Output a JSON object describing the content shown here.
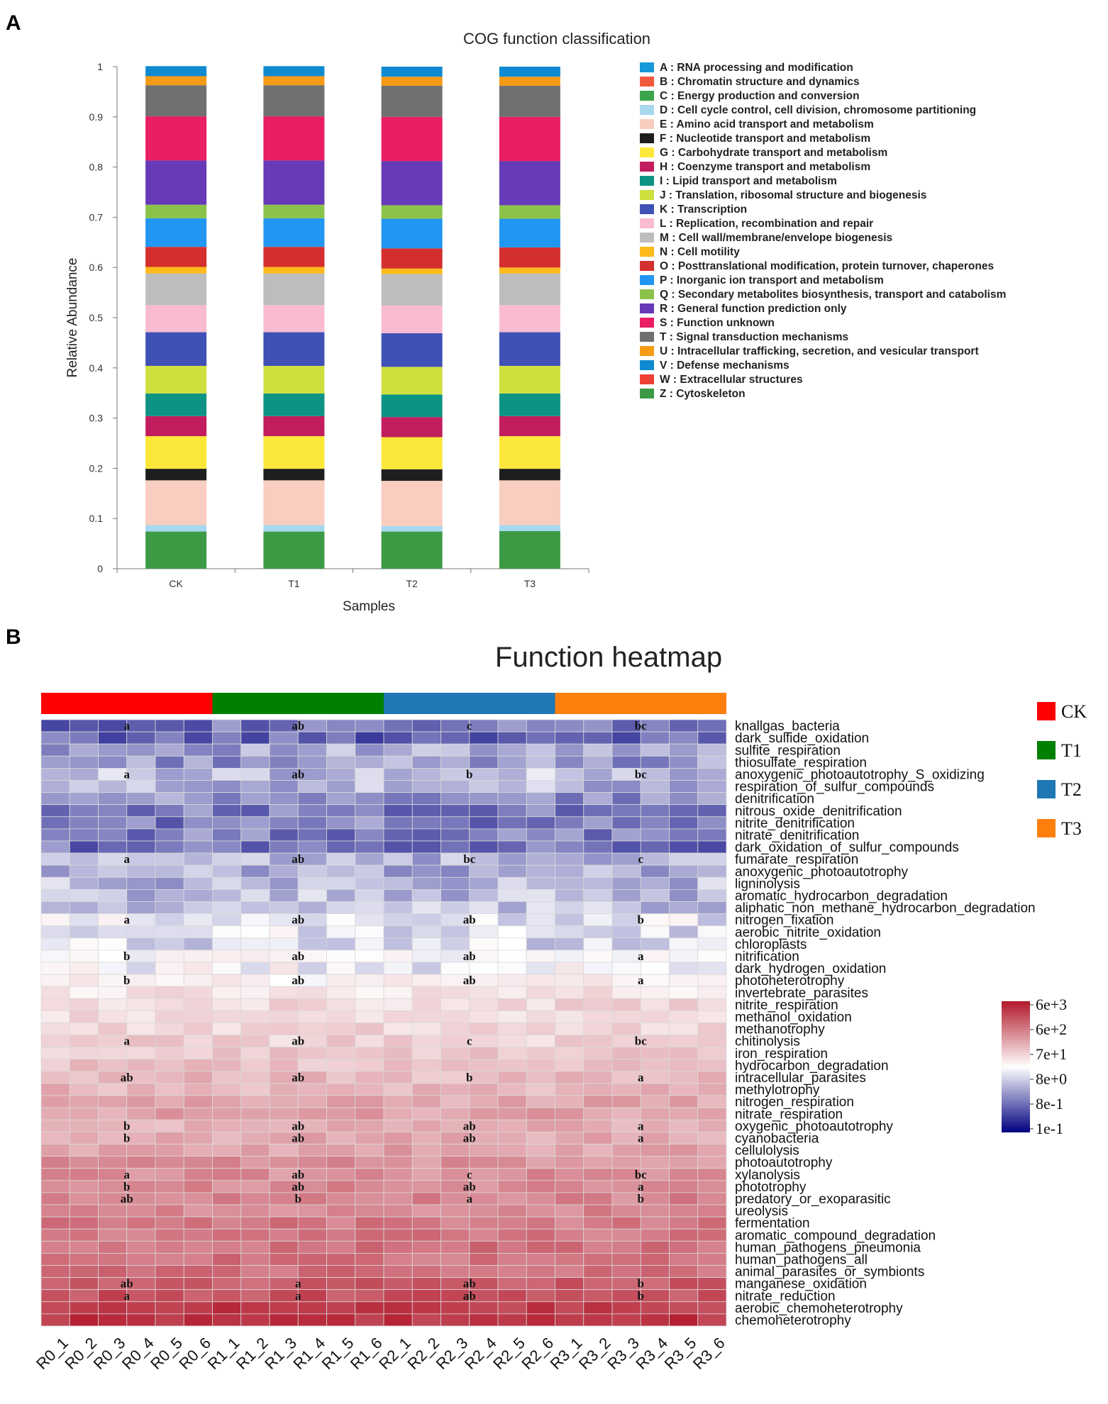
{
  "panel_a": {
    "letter": "A"
  },
  "panel_b": {
    "letter": "B"
  },
  "chart_data": [
    {
      "type": "bar",
      "stacked": true,
      "title": "COG function classification",
      "xlabel": "Samples",
      "ylabel": "Relative Abundance",
      "ylim": [
        0,
        1
      ],
      "yticks": [
        "0",
        "0.1",
        "0.2",
        "0.3",
        "0.4",
        "0.5",
        "0.6",
        "0.7",
        "0.8",
        "0.9",
        "1"
      ],
      "categories": [
        "CK",
        "T1",
        "T2",
        "T3"
      ],
      "series": [
        {
          "name": "Z : Cytoskeleton",
          "color": "#3c9a45",
          "values": [
            0.074,
            0.074,
            0.074,
            0.075
          ]
        },
        {
          "name": "D : Cell cycle control, cell division, chromosome partitioning",
          "color": "#a6d8f0",
          "values": [
            0.013,
            0.013,
            0.011,
            0.012
          ]
        },
        {
          "name": "E : Amino acid transport and metabolism",
          "color": "#f9cdbf",
          "values": [
            0.089,
            0.089,
            0.09,
            0.089
          ]
        },
        {
          "name": "F : Nucleotide transport and metabolism",
          "color": "#1e1e1e",
          "values": [
            0.023,
            0.023,
            0.023,
            0.023
          ]
        },
        {
          "name": "G : Carbohydrate transport and metabolism",
          "color": "#fce83a",
          "values": [
            0.065,
            0.065,
            0.064,
            0.065
          ]
        },
        {
          "name": "H : Coenzyme transport and metabolism",
          "color": "#c21d5e",
          "values": [
            0.04,
            0.04,
            0.04,
            0.04
          ]
        },
        {
          "name": "I : Lipid transport and metabolism",
          "color": "#0d9384",
          "values": [
            0.045,
            0.045,
            0.045,
            0.045
          ]
        },
        {
          "name": "J : Translation, ribosomal structure and biogenesis",
          "color": "#cde03e",
          "values": [
            0.055,
            0.055,
            0.055,
            0.055
          ]
        },
        {
          "name": "K : Transcription",
          "color": "#3f51b5",
          "values": [
            0.067,
            0.067,
            0.067,
            0.067
          ]
        },
        {
          "name": "L : Replication, recombination and repair",
          "color": "#f8bbd0",
          "values": [
            0.054,
            0.054,
            0.055,
            0.054
          ]
        },
        {
          "name": "M : Cell wall/membrane/envelope biogenesis",
          "color": "#bdbdbd",
          "values": [
            0.063,
            0.063,
            0.063,
            0.063
          ]
        },
        {
          "name": "N : Cell motility",
          "color": "#fcba1c",
          "values": [
            0.013,
            0.013,
            0.011,
            0.012
          ]
        },
        {
          "name": "O : Posttranslational modification, protein turnover, chaperones",
          "color": "#d32f2f",
          "values": [
            0.04,
            0.04,
            0.04,
            0.04
          ]
        },
        {
          "name": "P : Inorganic ion transport and metabolism",
          "color": "#2196f3",
          "values": [
            0.057,
            0.057,
            0.059,
            0.057
          ]
        },
        {
          "name": "Q : Secondary metabolites biosynthesis, transport and catabolism",
          "color": "#8bc34a",
          "values": [
            0.027,
            0.027,
            0.027,
            0.027
          ]
        },
        {
          "name": "R : General function prediction only",
          "color": "#673ab7",
          "values": [
            0.088,
            0.088,
            0.088,
            0.088
          ]
        },
        {
          "name": "S : Function unknown",
          "color": "#e91e63",
          "values": [
            0.088,
            0.088,
            0.088,
            0.088
          ]
        },
        {
          "name": "T : Signal transduction mechanisms",
          "color": "#707070",
          "values": [
            0.062,
            0.062,
            0.062,
            0.062
          ]
        },
        {
          "name": "U : Intracellular trafficking, secretion, and vesicular transport",
          "color": "#f59b15",
          "values": [
            0.018,
            0.018,
            0.018,
            0.018
          ]
        },
        {
          "name": "V : Defense mechanisms",
          "color": "#0f8ad0",
          "values": [
            0.02,
            0.02,
            0.02,
            0.02
          ]
        }
      ],
      "legend_position": "right",
      "legend": [
        {
          "label": "A : RNA processing and modification",
          "color": "#1599d8"
        },
        {
          "label": "B : Chromatin structure and dynamics",
          "color": "#f15a3c"
        },
        {
          "label": "C : Energy production and conversion",
          "color": "#3ba44a"
        },
        {
          "label": "D : Cell cycle control, cell division, chromosome partitioning",
          "color": "#a6d8f0"
        },
        {
          "label": "E : Amino acid transport and metabolism",
          "color": "#f9cdbf"
        },
        {
          "label": "F : Nucleotide transport and metabolism",
          "color": "#1e1e1e"
        },
        {
          "label": "G : Carbohydrate transport and metabolism",
          "color": "#fce83a"
        },
        {
          "label": "H : Coenzyme transport and metabolism",
          "color": "#c21d5e"
        },
        {
          "label": "I : Lipid transport and metabolism",
          "color": "#0d9384"
        },
        {
          "label": "J : Translation, ribosomal structure and biogenesis",
          "color": "#cde03e"
        },
        {
          "label": "K : Transcription",
          "color": "#3f51b5"
        },
        {
          "label": "L : Replication, recombination and repair",
          "color": "#f8bbd0"
        },
        {
          "label": "M : Cell wall/membrane/envelope biogenesis",
          "color": "#bdbdbd"
        },
        {
          "label": "N : Cell motility",
          "color": "#fcba1c"
        },
        {
          "label": "O : Posttranslational modification, protein turnover, chaperones",
          "color": "#d32f2f"
        },
        {
          "label": "P : Inorganic ion transport and metabolism",
          "color": "#2196f3"
        },
        {
          "label": "Q : Secondary metabolites biosynthesis, transport and catabolism",
          "color": "#8bc34a"
        },
        {
          "label": "R : General function prediction only",
          "color": "#673ab7"
        },
        {
          "label": "S : Function unknown",
          "color": "#e91e63"
        },
        {
          "label": "T : Signal transduction mechanisms",
          "color": "#707070"
        },
        {
          "label": "U : Intracellular trafficking, secretion, and vesicular transport",
          "color": "#f59b15"
        },
        {
          "label": "V : Defense mechanisms",
          "color": "#0f8ad0"
        },
        {
          "label": "W : Extracellular structures",
          "color": "#ef4036"
        },
        {
          "label": "Z : Cytoskeleton",
          "color": "#3c9a45"
        }
      ]
    },
    {
      "type": "heatmap",
      "title": "Function heatmap",
      "columns": [
        "R0_1",
        "R0_2",
        "R0_3",
        "R0_4",
        "R0_5",
        "R0_6",
        "R1_1",
        "R1_2",
        "R1_3",
        "R1_4",
        "R1_5",
        "R1_6",
        "R2_1",
        "R2_2",
        "R2_3",
        "R2_4",
        "R2_5",
        "R2_6",
        "R3_1",
        "R3_2",
        "R3_3",
        "R3_4",
        "R3_5",
        "R3_6"
      ],
      "groups": [
        {
          "name": "CK",
          "color": "#ff0000",
          "span": 6
        },
        {
          "name": "T1",
          "color": "#008000",
          "span": 6
        },
        {
          "name": "T2",
          "color": "#1f77b4",
          "span": 6
        },
        {
          "name": "T3",
          "color": "#ff7f0e",
          "span": 6
        }
      ],
      "rows": [
        "knallgas_bacteria",
        "dark_sulfide_oxidation",
        "sulfite_respiration",
        "thiosulfate_respiration",
        "anoxygenic_photoautotrophy_S_oxidizing",
        "respiration_of_sulfur_compounds",
        "denitrification",
        "nitrous_oxide_denitrification",
        "nitrite_denitrification",
        "nitrate_denitrification",
        "dark_oxidation_of_sulfur_compounds",
        "fumarate_respiration",
        "anoxygenic_photoautotrophy",
        "ligninolysis",
        "aromatic_hydrocarbon_degradation",
        "aliphatic_non_methane_hydrocarbon_degradation",
        "nitrogen_fixation",
        "aerobic_nitrite_oxidation",
        "chloroplasts",
        "nitrification",
        "dark_hydrogen_oxidation",
        "photoheterotrophy",
        "invertebrate_parasites",
        "nitrite_respiration",
        "methanol_oxidation",
        "methanotrophy",
        "chitinolysis",
        "iron_respiration",
        "hydrocarbon_degradation",
        "intracellular_parasites",
        "methylotrophy",
        "nitrogen_respiration",
        "nitrate_respiration",
        "oxygenic_photoautotrophy",
        "cyanobacteria",
        "cellulolysis",
        "photoautotrophy",
        "xylanolysis",
        "phototrophy",
        "predatory_or_exoparasitic",
        "ureolysis",
        "fermentation",
        "aromatic_compound_degradation",
        "human_pathogens_pneumonia",
        "human_pathogens_all",
        "animal_parasites_or_symbionts",
        "manganese_oxidation",
        "nitrate_reduction",
        "aerobic_chemoheterotrophy",
        "chemoheterotrophy"
      ],
      "row_base": [
        -0.55,
        -0.6,
        -0.35,
        -0.4,
        -0.25,
        -0.3,
        -0.45,
        -0.5,
        -0.5,
        -0.5,
        -0.55,
        -0.3,
        -0.32,
        -0.28,
        -0.27,
        -0.27,
        -0.1,
        -0.12,
        -0.14,
        0.0,
        -0.05,
        0.05,
        0.12,
        0.17,
        0.15,
        0.18,
        0.2,
        0.24,
        0.26,
        0.3,
        0.32,
        0.38,
        0.4,
        0.35,
        0.36,
        0.4,
        0.47,
        0.48,
        0.5,
        0.52,
        0.52,
        0.57,
        0.58,
        0.6,
        0.6,
        0.61,
        0.7,
        0.75,
        0.85,
        0.88
      ],
      "significance": [
        {
          "row": 0,
          "labels": [
            "a",
            "ab",
            "c",
            "bc"
          ]
        },
        {
          "row": 4,
          "labels": [
            "a",
            "ab",
            "b",
            "bc"
          ]
        },
        {
          "row": 11,
          "labels": [
            "a",
            "ab",
            "bc",
            "c"
          ]
        },
        {
          "row": 16,
          "labels": [
            "a",
            "ab",
            "ab",
            "b"
          ]
        },
        {
          "row": 19,
          "labels": [
            "b",
            "ab",
            "ab",
            "a"
          ]
        },
        {
          "row": 21,
          "labels": [
            "b",
            "ab",
            "ab",
            "a"
          ]
        },
        {
          "row": 26,
          "labels": [
            "a",
            "ab",
            "c",
            "bc"
          ]
        },
        {
          "row": 29,
          "labels": [
            "ab",
            "ab",
            "b",
            "a"
          ]
        },
        {
          "row": 33,
          "labels": [
            "b",
            "ab",
            "ab",
            "a"
          ]
        },
        {
          "row": 34,
          "labels": [
            "b",
            "ab",
            "ab",
            "a"
          ]
        },
        {
          "row": 37,
          "labels": [
            "a",
            "ab",
            "c",
            "bc"
          ]
        },
        {
          "row": 38,
          "labels": [
            "b",
            "ab",
            "ab",
            "a"
          ]
        },
        {
          "row": 39,
          "labels": [
            "ab",
            "b",
            "a",
            "b"
          ]
        },
        {
          "row": 46,
          "labels": [
            "ab",
            "a",
            "ab",
            "b"
          ]
        },
        {
          "row": 47,
          "labels": [
            "a",
            "a",
            "ab",
            "b"
          ]
        }
      ],
      "colorbar": {
        "labels": [
          "6e+3",
          "6e+2",
          "7e+1",
          "8e+0",
          "8e-1",
          "1e-1"
        ],
        "colors": [
          "#b2182b",
          "#ffffff",
          "#000080"
        ]
      }
    }
  ]
}
